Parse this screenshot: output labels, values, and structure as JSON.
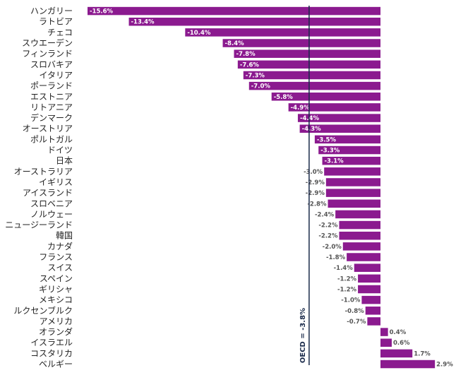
{
  "chart_data": {
    "type": "bar",
    "orientation": "horizontal",
    "categories": [
      "ハンガリー",
      "ラトビア",
      "チェコ",
      "スウエーデン",
      "フィンランド",
      "スロバキア",
      "イタリア",
      "ポーランド",
      "エストニア",
      "リトアニア",
      "デンマーク",
      "オーストリア",
      "ポルトガル",
      "ドイツ",
      "日本",
      "オーストラリア",
      "イギリス",
      "アイスランド",
      "スロベニア",
      "ノルウェー",
      "ニュージーランド",
      "韓国",
      "カナダ",
      "フランス",
      "スイス",
      "スペイン",
      "ギリシャ",
      "メキシコ",
      "ルクセンブルク",
      "アメリカ",
      "オランダ",
      "イスラエル",
      "コスタリカ",
      "ベルギー"
    ],
    "values": [
      -15.6,
      -13.4,
      -10.4,
      -8.4,
      -7.8,
      -7.6,
      -7.3,
      -7.0,
      -5.8,
      -4.9,
      -4.4,
      -4.3,
      -3.5,
      -3.3,
      -3.1,
      -3.0,
      -2.9,
      -2.9,
      -2.8,
      -2.4,
      -2.2,
      -2.2,
      -2.0,
      -1.8,
      -1.4,
      -1.2,
      -1.2,
      -1.0,
      -0.8,
      -0.7,
      0.4,
      0.6,
      1.7,
      2.9
    ],
    "value_labels": [
      "-15.6%",
      "-13.4%",
      "-10.4%",
      "-8.4%",
      "-7.8%",
      "-7.6%",
      "-7.3%",
      "-7.0%",
      "-5.8%",
      "-4.9%",
      "-4.4%",
      "-4.3%",
      "-3.5%",
      "-3.3%",
      "-3.1%",
      "-3.0%",
      "-2.9%",
      "-2.9%",
      "-2.8%",
      "-2.4%",
      "-2.2%",
      "-2.2%",
      "-2.0%",
      "-1.8%",
      "-1.4%",
      "-1.2%",
      "-1.2%",
      "-1.0%",
      "-0.8%",
      "-0.7%",
      "0.4%",
      "0.6%",
      "1.7%",
      "2.9%"
    ],
    "xlim": [
      -15.6,
      2.9
    ],
    "grid": false,
    "reference_line": {
      "value": -3.8,
      "label": "OECD = -3.8%"
    },
    "colors": {
      "bar": "#8b1a8f",
      "reference": "#1a2a4a",
      "label_inside": "#ffffff",
      "label_outside": "#555555"
    }
  }
}
